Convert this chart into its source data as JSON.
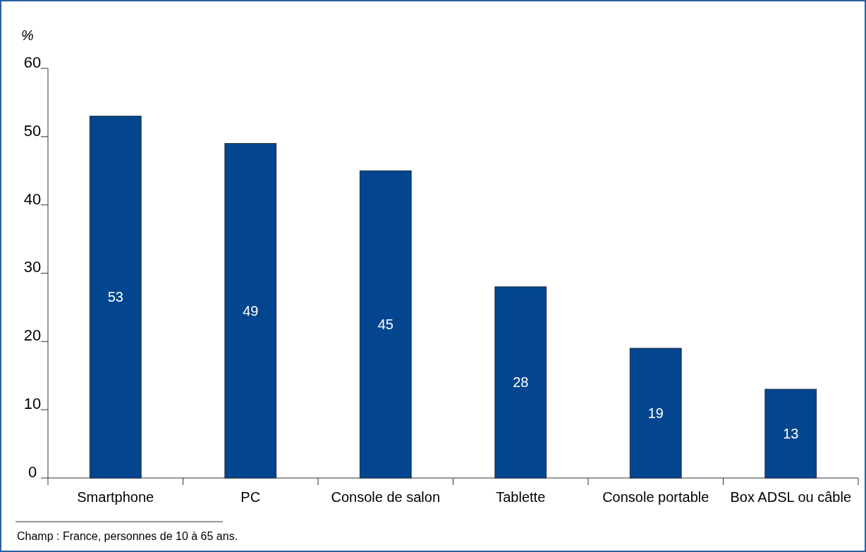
{
  "chart_data": {
    "type": "bar",
    "ylabel": "%",
    "categories": [
      "Smartphone",
      "PC",
      "Console de salon",
      "Tablette",
      "Console portable",
      "Box ADSL ou câble"
    ],
    "values": [
      53,
      49,
      45,
      28,
      19,
      13
    ],
    "color": "#03468f",
    "data_labels": true,
    "ylim": [
      0,
      60
    ],
    "yticks": [
      0,
      10,
      20,
      30,
      40,
      50,
      60
    ],
    "grid": false,
    "annotations": [
      "Champ : France, personnes de 10 à 65 ans."
    ]
  }
}
